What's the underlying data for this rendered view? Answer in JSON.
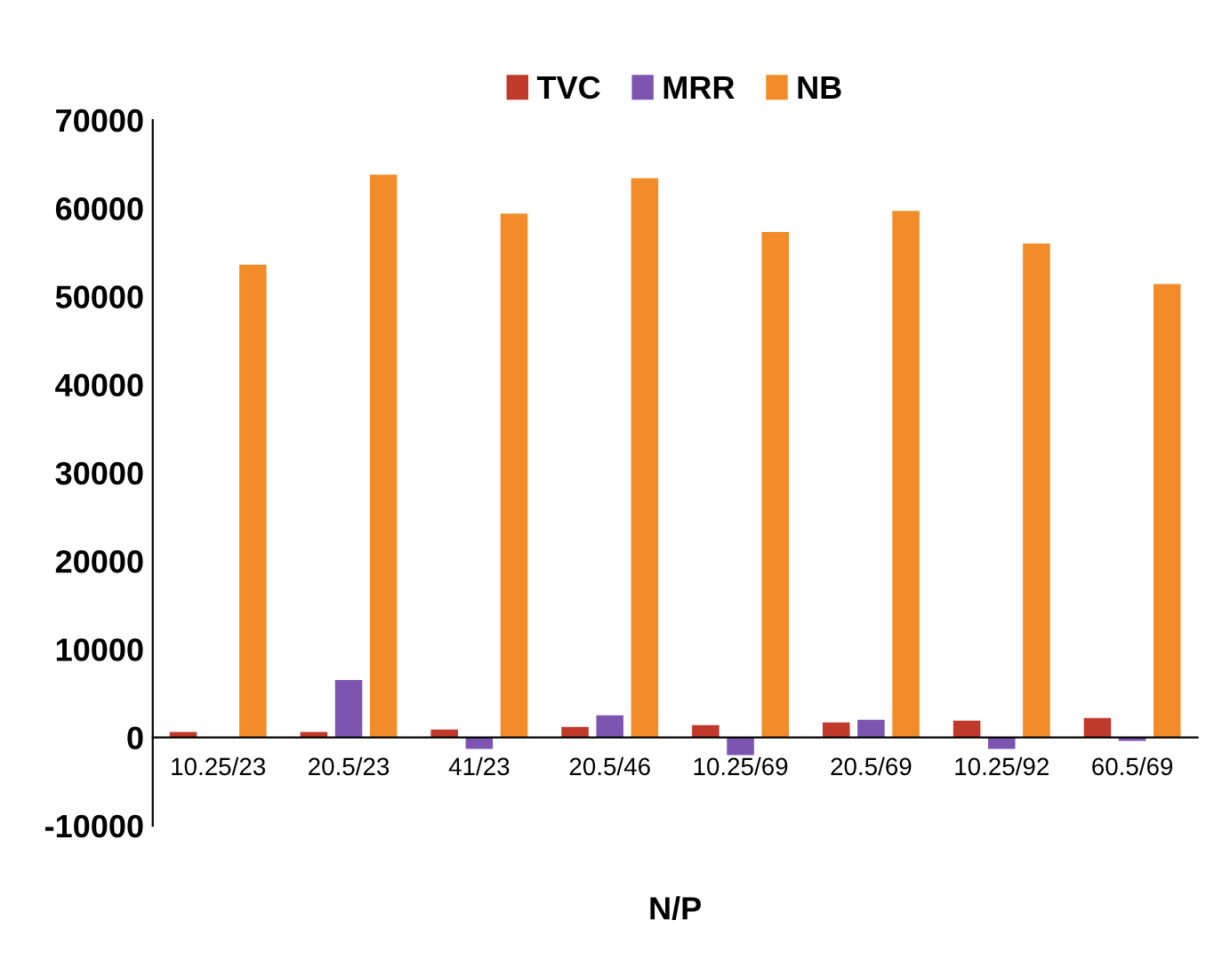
{
  "chart_data": {
    "type": "bar",
    "xlabel": "N/P",
    "categories": [
      "10.25/23",
      "20.5/23",
      "41/23",
      "20.5/46",
      "10.25/69",
      "20.5/69",
      "10.25/92",
      "60.5/69"
    ],
    "series": [
      {
        "name": "TVC",
        "color": "#c0392b",
        "values": [
          600,
          600,
          900,
          1200,
          1400,
          1700,
          1900,
          2200
        ]
      },
      {
        "name": "MRR",
        "color": "#7d55b0",
        "values": [
          null,
          6500,
          -1300,
          2500,
          -2000,
          2000,
          -1300,
          -400
        ]
      },
      {
        "name": "NB",
        "color": "#f28c28",
        "values": [
          53600,
          63800,
          59400,
          63400,
          57300,
          59700,
          56000,
          51400
        ]
      }
    ],
    "ylim": [
      -10000,
      70000
    ],
    "yticks": [
      -10000,
      0,
      10000,
      20000,
      30000,
      40000,
      50000,
      60000,
      70000
    ],
    "grid": false,
    "legend": "top"
  }
}
